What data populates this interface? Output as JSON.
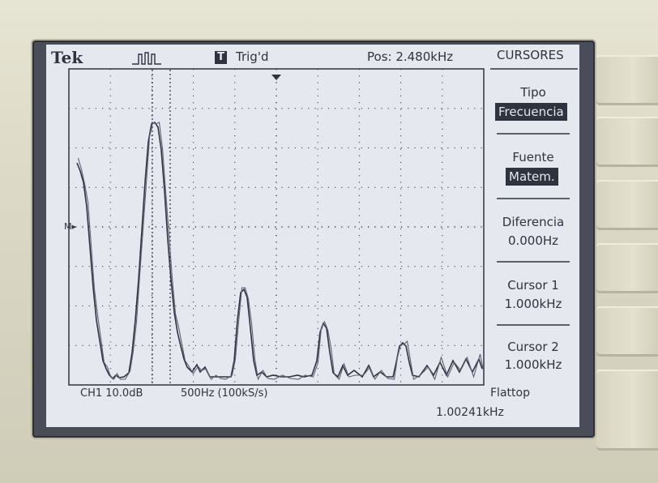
{
  "header": {
    "brand": "Tek",
    "trigger_icon_letter": "T",
    "trigger_status": "Trig'd",
    "position": "Pos: 2.480kHz"
  },
  "menu": {
    "title": "CURSORES",
    "items": [
      {
        "label": "Tipo",
        "value": "Frecuencia",
        "highlighted": true
      },
      {
        "label": "Fuente",
        "value": "Matem.",
        "highlighted": true
      },
      {
        "label": "Diferencia",
        "value": "0.000Hz",
        "highlighted": false
      },
      {
        "label": "Cursor 1",
        "value": "1.000kHz",
        "highlighted": false
      },
      {
        "label": "Cursor 2",
        "value": "1.000kHz",
        "highlighted": false
      }
    ]
  },
  "bottom": {
    "channel": "CH1 10.0dB",
    "timebase": "500Hz (100kS/s)",
    "window": "Flattop",
    "frequency": "1.00241kHz"
  },
  "colors": {
    "lcd_background": "#e6e8ef",
    "trace": "#2f3340",
    "bezel": "#d9d7c4"
  },
  "icons": {
    "waveform": "fft-window-icon",
    "trigger_marker": "trigger-position-marker-icon",
    "ground_marker": "channel-ground-marker-icon"
  }
}
